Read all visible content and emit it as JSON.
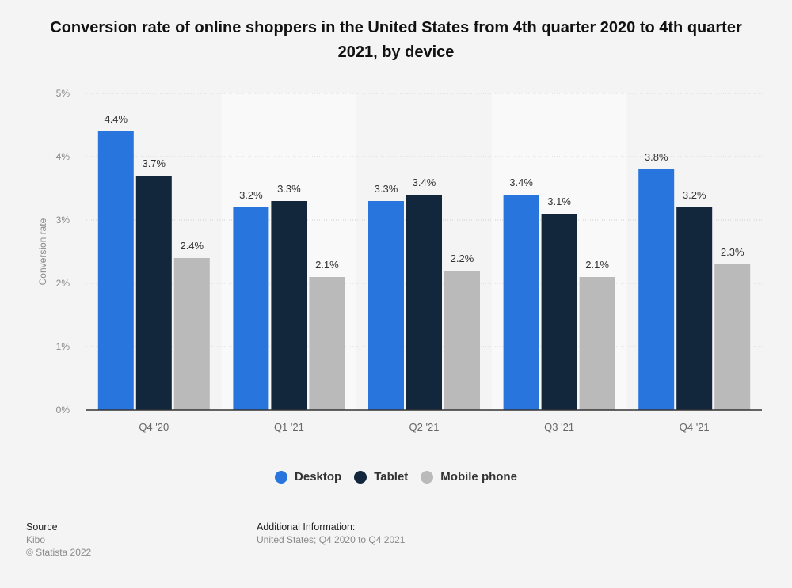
{
  "title": "Conversion rate of online shoppers in the United States from 4th quarter 2020 to 4th quarter 2021, by device",
  "chart_data": {
    "type": "bar",
    "title": "Conversion rate of online shoppers in the United States from 4th quarter 2020 to 4th quarter 2021, by device",
    "xlabel": "",
    "ylabel": "Conversion rate",
    "ylim": [
      0,
      5
    ],
    "yticks": [
      "0%",
      "1%",
      "2%",
      "3%",
      "4%",
      "5%"
    ],
    "grid": true,
    "legend_position": "bottom-center",
    "categories": [
      "Q4 '20",
      "Q1 '21",
      "Q2 '21",
      "Q3 '21",
      "Q4 '21"
    ],
    "series": [
      {
        "name": "Desktop",
        "color": "#2876dd",
        "values": [
          4.4,
          3.2,
          3.3,
          3.4,
          3.8
        ],
        "labels": [
          "4.4%",
          "3.2%",
          "3.3%",
          "3.4%",
          "3.8%"
        ]
      },
      {
        "name": "Tablet",
        "color": "#12263c",
        "values": [
          3.7,
          3.3,
          3.4,
          3.1,
          3.2
        ],
        "labels": [
          "3.7%",
          "3.3%",
          "3.4%",
          "3.1%",
          "3.2%"
        ]
      },
      {
        "name": "Mobile phone",
        "color": "#bababa",
        "values": [
          2.4,
          2.1,
          2.2,
          2.1,
          2.3
        ],
        "labels": [
          "2.4%",
          "2.1%",
          "2.2%",
          "2.1%",
          "2.3%"
        ]
      }
    ]
  },
  "legend": [
    {
      "label": "Desktop",
      "color": "#2876dd"
    },
    {
      "label": "Tablet",
      "color": "#12263c"
    },
    {
      "label": "Mobile phone",
      "color": "#bababa"
    }
  ],
  "footer": {
    "source_heading": "Source",
    "source_name": "Kibo",
    "copyright": "© Statista 2022",
    "additional_heading": "Additional Information:",
    "additional_text": "United States; Q4 2020 to Q4 2021"
  }
}
